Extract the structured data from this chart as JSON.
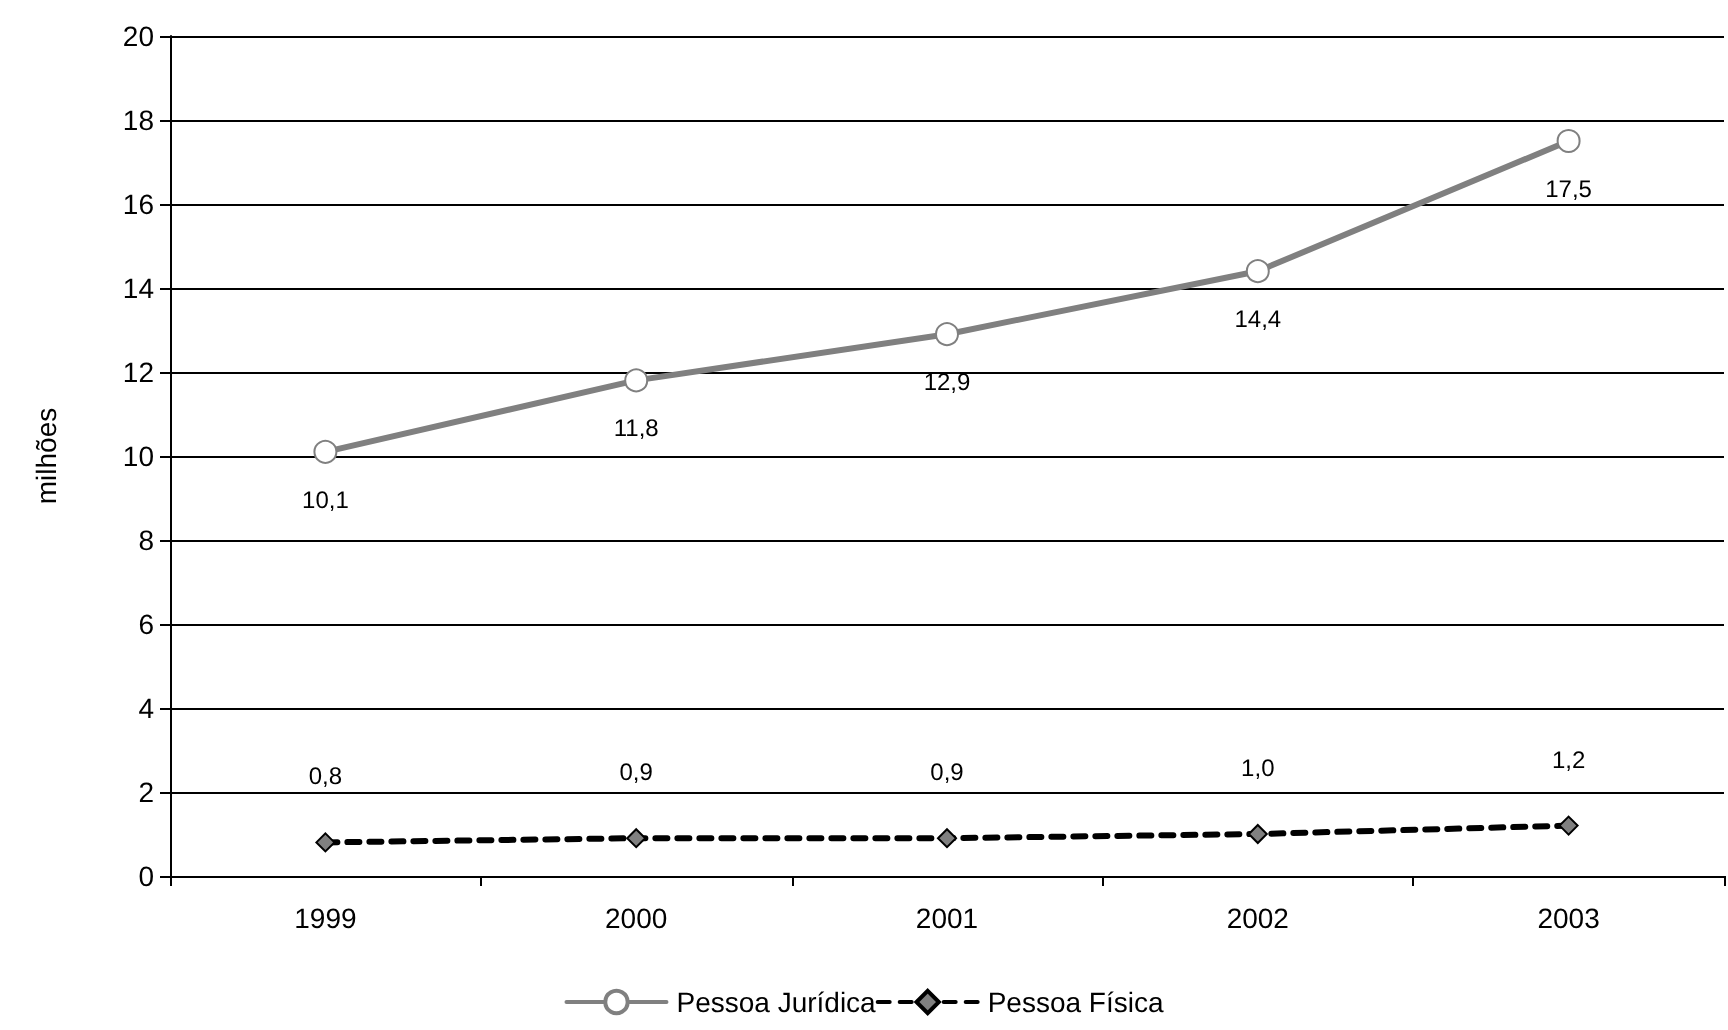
{
  "chart_data": {
    "type": "line",
    "ylabel": "milhões",
    "categories": [
      "1999",
      "2000",
      "2001",
      "2002",
      "2003"
    ],
    "series": [
      {
        "name": "Pessoa Jurídica",
        "color": "#808080",
        "marker": "circle",
        "line_style": "solid",
        "values": [
          10.1,
          11.8,
          12.9,
          14.4,
          17.5
        ],
        "value_labels": [
          "10,1",
          "11,8",
          "12,9",
          "14,4",
          "17,5"
        ]
      },
      {
        "name": "Pessoa Física",
        "color": "#000000",
        "marker": "diamond",
        "line_style": "dashed",
        "values": [
          0.8,
          0.9,
          0.9,
          1.0,
          1.2
        ],
        "value_labels": [
          "0,8",
          "0,9",
          "0,9",
          "1,0",
          "1,2"
        ]
      }
    ],
    "ylim": [
      0,
      20
    ],
    "yticks": [
      0,
      2,
      4,
      6,
      8,
      10,
      12,
      14,
      16,
      18,
      20
    ],
    "grid": "y",
    "legend": "bottom"
  }
}
